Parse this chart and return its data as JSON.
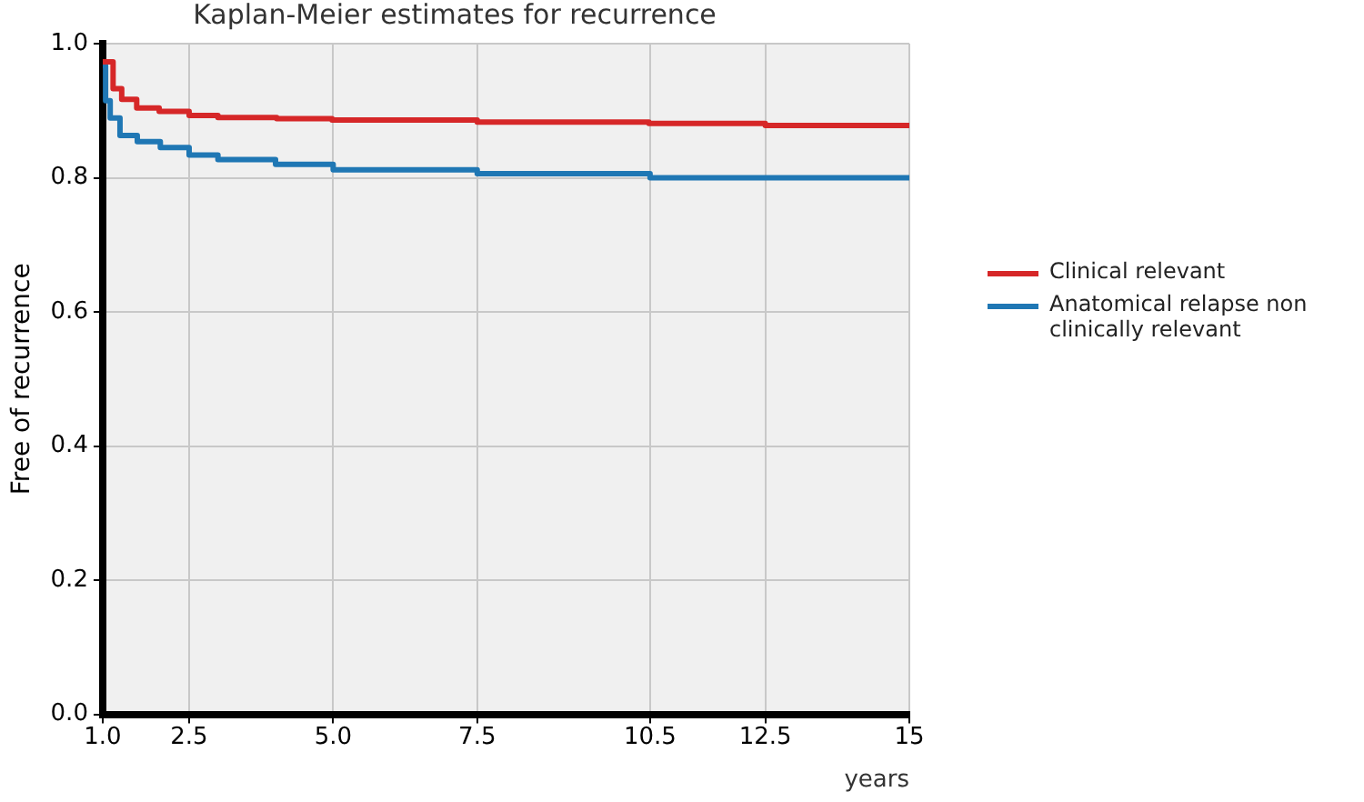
{
  "chart_data": {
    "type": "step",
    "title": "Kaplan-Meier estimates for recurrence",
    "xlabel": "years",
    "ylabel": "Free of recurrence",
    "xlim": [
      1,
      15
    ],
    "xticks": [
      {
        "value": 1,
        "label": "1.0"
      },
      {
        "value": 2.5,
        "label": "2.5"
      },
      {
        "value": 5,
        "label": "5.0"
      },
      {
        "value": 7.5,
        "label": "7.5"
      },
      {
        "value": 10.5,
        "label": "10.5"
      },
      {
        "value": 12.5,
        "label": "12.5"
      },
      15
    ],
    "ylim": [
      0,
      1
    ],
    "yticks": [
      {
        "value": 0,
        "label": "0.0"
      },
      {
        "value": 0.2,
        "label": "0.2"
      },
      {
        "value": 0.4,
        "label": "0.4"
      },
      {
        "value": 0.6,
        "label": "0.6"
      },
      {
        "value": 0.8,
        "label": "0.8"
      },
      {
        "value": 1,
        "label": "1.0"
      }
    ],
    "grid": true,
    "legend": "right",
    "line_style": "solid",
    "marker": "none",
    "series": [
      {
        "name": "Clinical relevant",
        "color": "#d62728",
        "x": [
          1,
          1.18,
          1.33,
          1.59,
          1.98,
          2.5,
          3.0,
          4.02,
          4.98,
          7.5,
          10.48,
          12.5,
          15
        ],
        "values": [
          0.973,
          0.933,
          0.917,
          0.904,
          0.899,
          0.893,
          0.89,
          0.888,
          0.886,
          0.883,
          0.881,
          0.878,
          0.878
        ]
      },
      {
        "name": "Anatomical relapse non clinically relevant",
        "color": "#1f77b4",
        "x": [
          1,
          1.05,
          1.13,
          1.3,
          1.6,
          2.0,
          2.5,
          3.0,
          4.0,
          5.0,
          7.5,
          10.5,
          15
        ],
        "values": [
          0.967,
          0.915,
          0.889,
          0.863,
          0.854,
          0.845,
          0.834,
          0.827,
          0.82,
          0.812,
          0.806,
          0.8,
          0.8
        ]
      }
    ]
  }
}
